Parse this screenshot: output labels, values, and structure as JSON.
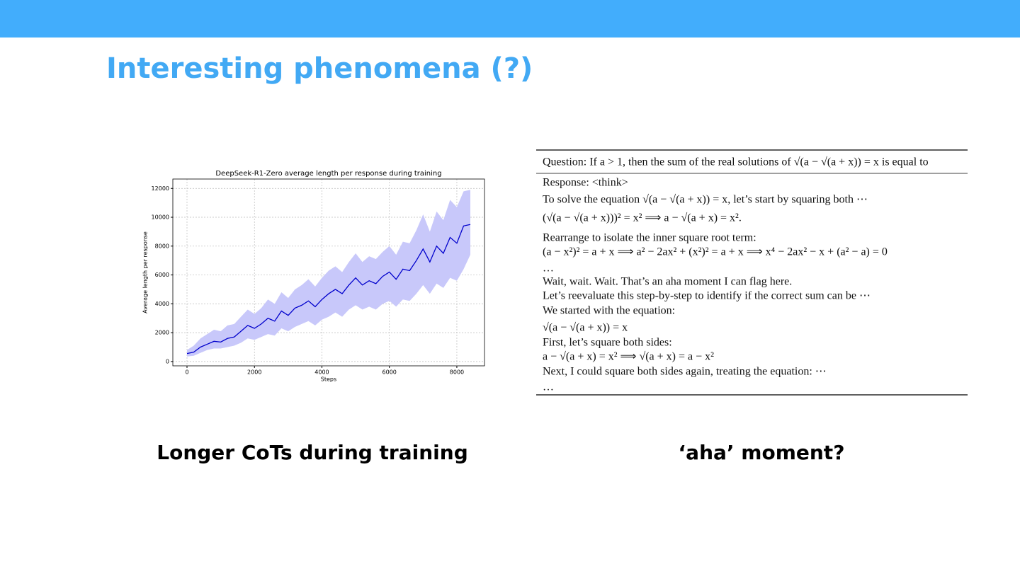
{
  "header": {
    "title": "Interesting phenomena (?)"
  },
  "chart_data": {
    "type": "line",
    "title": "DeepSeek-R1-Zero average length per response during training",
    "x_label": "Steps",
    "y_label": "Average length per response",
    "x": [
      0,
      200,
      400,
      600,
      800,
      1000,
      1200,
      1400,
      1600,
      1800,
      2000,
      2200,
      2400,
      2600,
      2800,
      3000,
      3200,
      3400,
      3600,
      3800,
      4000,
      4200,
      4400,
      4600,
      4800,
      5000,
      5200,
      5400,
      5600,
      5800,
      6000,
      6200,
      6400,
      6600,
      6800,
      7000,
      7200,
      7400,
      7600,
      7800,
      8000,
      8200,
      8400
    ],
    "values": [
      550,
      650,
      1000,
      1200,
      1400,
      1350,
      1600,
      1700,
      2100,
      2500,
      2300,
      2600,
      3000,
      2800,
      3500,
      3200,
      3700,
      3900,
      4200,
      3800,
      4300,
      4700,
      5000,
      4700,
      5300,
      5800,
      5300,
      5600,
      5400,
      5900,
      6200,
      5700,
      6400,
      6300,
      7000,
      7800,
      6900,
      8000,
      7500,
      8600,
      8200,
      9400,
      9500
    ],
    "color": "#0000cc",
    "band": {
      "color": "#c8c8fa",
      "lower": [
        350,
        400,
        600,
        800,
        900,
        900,
        1000,
        1100,
        1300,
        1600,
        1500,
        1700,
        1900,
        1800,
        2300,
        2100,
        2400,
        2600,
        2800,
        2500,
        2900,
        3100,
        3400,
        3100,
        3600,
        3900,
        3600,
        3800,
        3600,
        4000,
        4200,
        3800,
        4300,
        4200,
        4700,
        5300,
        4700,
        5400,
        5100,
        5800,
        5600,
        6400,
        7400
      ],
      "upper": [
        800,
        1100,
        1600,
        1900,
        2200,
        2100,
        2500,
        2600,
        3100,
        3600,
        3300,
        3700,
        4300,
        4000,
        4800,
        4400,
        5000,
        5300,
        5700,
        5200,
        5800,
        6300,
        6600,
        6200,
        6900,
        7500,
        6900,
        7300,
        7100,
        7600,
        8000,
        7400,
        8300,
        8200,
        9100,
        10200,
        9000,
        10400,
        9800,
        11200,
        10700,
        11800,
        11900
      ]
    },
    "xlim": [
      -420,
      8820
    ],
    "ylim": [
      -300,
      12650
    ],
    "xticks": [
      0,
      2000,
      4000,
      6000,
      8000
    ],
    "yticks": [
      0,
      2000,
      4000,
      6000,
      8000,
      10000,
      12000
    ],
    "grid": true
  },
  "example": {
    "question": "Question: If a > 1, then the sum of the real solutions of √(a − √(a + x)) = x is equal to",
    "lines": [
      {
        "text": "Response: <think>"
      },
      {
        "text": "To solve the equation √(a − √(a + x)) = x, let’s start by squaring both ⋯"
      },
      {
        "text": "(√(a − √(a + x)))² = x²  ⟹  a − √(a + x) = x²."
      },
      {
        "text": "Rearrange to isolate the inner square root term:"
      },
      {
        "text": "(a − x²)² = a + x  ⟹  a² − 2ax² + (x²)² = a + x  ⟹  x⁴ − 2ax² − x + (a² − a) = 0"
      },
      {
        "text": "…"
      },
      {
        "text": "Wait, wait. Wait. That’s an aha moment I can flag here.",
        "color": "#e8000b"
      },
      {
        "text": "Let’s reevaluate this step-by-step to identify if the correct sum can be ⋯"
      },
      {
        "text": "We started with the equation:"
      },
      {
        "text": "√(a − √(a + x)) = x"
      },
      {
        "text": "First, let’s square both sides:"
      },
      {
        "text": "a − √(a + x) = x²  ⟹  √(a + x) = a − x²"
      },
      {
        "text": "Next, I could square both sides again, treating the equation: ⋯"
      },
      {
        "text": "…"
      }
    ]
  },
  "captions": [
    "Longer CoTs during training",
    "‘aha’ moment?"
  ]
}
